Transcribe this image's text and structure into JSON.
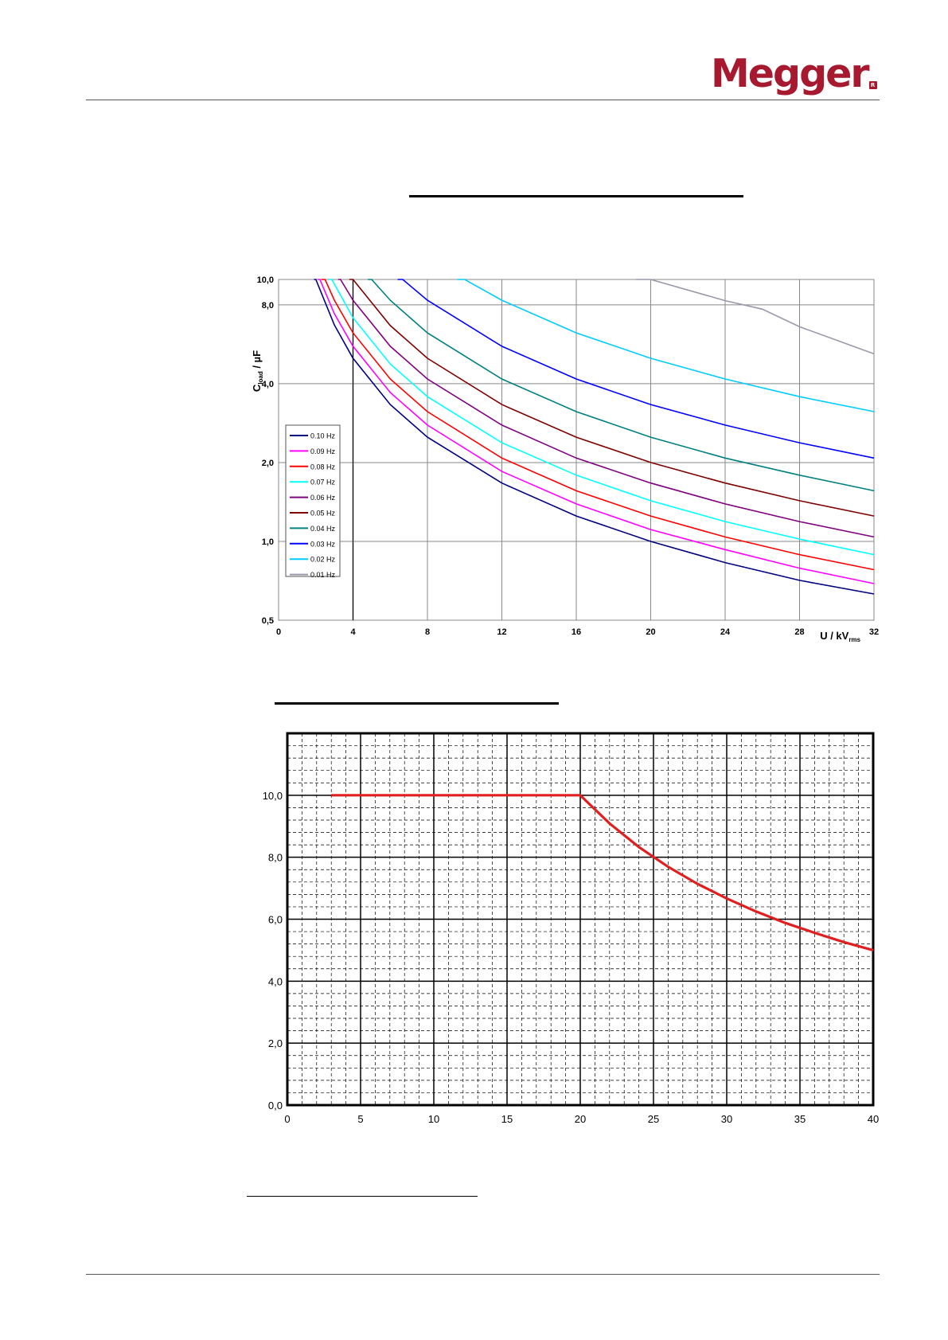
{
  "header": {
    "brand": "Megger",
    "brand_mark": "R"
  },
  "chart_data": [
    {
      "type": "line",
      "title": "",
      "xlabel": "U / kV",
      "xlabel_sub": "rms",
      "ylabel": "C",
      "ylabel_sub": "load",
      "ylabel_unit": " / µF",
      "yscale": "log",
      "xlim": [
        0,
        32
      ],
      "ylim": [
        0.5,
        10
      ],
      "xticks": [
        0,
        4,
        8,
        12,
        16,
        20,
        24,
        28,
        32
      ],
      "xtick_labels": [
        "0",
        "4",
        "8",
        "12",
        "16",
        "20",
        "24",
        "28",
        "32"
      ],
      "yticks": [
        0.5,
        1,
        2,
        4,
        8,
        10
      ],
      "ytick_labels": [
        "0,5",
        "1,0",
        "2,0",
        "4,0",
        "8,0",
        "10,0"
      ],
      "grid": true,
      "legend": "lower-left",
      "series": [
        {
          "name": "0.10 Hz",
          "color": "#000080",
          "x": [
            1.9,
            2,
            3,
            4,
            6,
            8,
            12,
            16,
            20,
            24,
            28,
            32
          ],
          "y": [
            10,
            10,
            6.7,
            5.0,
            3.33,
            2.5,
            1.67,
            1.25,
            1.0,
            0.83,
            0.71,
            0.63
          ]
        },
        {
          "name": "0.09 Hz",
          "color": "#ff00ff",
          "x": [
            2.1,
            2.22,
            3,
            4,
            6,
            8,
            12,
            16,
            20,
            24,
            28,
            32
          ],
          "y": [
            10,
            10,
            7.4,
            5.56,
            3.7,
            2.78,
            1.85,
            1.39,
            1.11,
            0.93,
            0.79,
            0.69
          ]
        },
        {
          "name": "0.08 Hz",
          "color": "#ff0000",
          "x": [
            2.3,
            2.5,
            3,
            4,
            6,
            8,
            12,
            16,
            20,
            24,
            28,
            32
          ],
          "y": [
            10,
            10,
            8.33,
            6.25,
            4.17,
            3.13,
            2.08,
            1.56,
            1.25,
            1.04,
            0.89,
            0.78
          ]
        },
        {
          "name": "0.07 Hz",
          "color": "#00ffff",
          "x": [
            2.7,
            2.86,
            4,
            6,
            8,
            12,
            16,
            20,
            24,
            28,
            32
          ],
          "y": [
            10,
            10,
            7.14,
            4.76,
            3.57,
            2.38,
            1.79,
            1.43,
            1.19,
            1.02,
            0.89
          ]
        },
        {
          "name": "0.06 Hz",
          "color": "#800080",
          "x": [
            3.2,
            3.33,
            4,
            6,
            8,
            12,
            16,
            20,
            24,
            28,
            32
          ],
          "y": [
            10,
            10,
            8.33,
            5.56,
            4.17,
            2.78,
            2.08,
            1.67,
            1.39,
            1.19,
            1.04
          ]
        },
        {
          "name": "0.05 Hz",
          "color": "#800000",
          "x": [
            3.8,
            4.0,
            6,
            8,
            12,
            16,
            20,
            24,
            28,
            32
          ],
          "y": [
            10,
            10,
            6.67,
            5.0,
            3.33,
            2.5,
            2.0,
            1.67,
            1.43,
            1.25
          ]
        },
        {
          "name": "0.04 Hz",
          "color": "#008080",
          "x": [
            4.8,
            5.0,
            6,
            8,
            12,
            16,
            20,
            24,
            28,
            32
          ],
          "y": [
            10,
            10,
            8.33,
            6.25,
            4.17,
            3.13,
            2.5,
            2.08,
            1.79,
            1.56
          ]
        },
        {
          "name": "0.03 Hz",
          "color": "#0000ff",
          "x": [
            6.4,
            6.67,
            8,
            12,
            16,
            20,
            24,
            28,
            32
          ],
          "y": [
            10,
            10,
            8.33,
            5.56,
            4.17,
            3.33,
            2.78,
            2.38,
            2.08
          ]
        },
        {
          "name": "0.02 Hz",
          "color": "#00ccff",
          "x": [
            9.6,
            10,
            12,
            16,
            20,
            24,
            28,
            32
          ],
          "y": [
            10,
            10,
            8.33,
            6.25,
            5.0,
            4.17,
            3.57,
            3.13
          ]
        },
        {
          "name": "0.01 Hz",
          "color": "#9999aa",
          "x": [
            19.2,
            20,
            24,
            26,
            28,
            32
          ],
          "y": [
            10,
            10,
            8.3,
            7.7,
            6.6,
            5.2
          ]
        }
      ]
    },
    {
      "type": "line",
      "title": "",
      "xlabel": "",
      "ylabel": "",
      "xlim": [
        0,
        40
      ],
      "ylim": [
        0,
        12
      ],
      "xticks": [
        0,
        5,
        10,
        15,
        20,
        25,
        30,
        35,
        40
      ],
      "xtick_labels": [
        "0",
        "5",
        "10",
        "15",
        "20",
        "25",
        "30",
        "35",
        "40"
      ],
      "yticks": [
        0,
        2,
        4,
        6,
        8,
        10
      ],
      "ytick_labels": [
        "0,0",
        "2,0",
        "4,0",
        "6,0",
        "8,0",
        "10,0"
      ],
      "grid": true,
      "series": [
        {
          "color": "#e02020",
          "x": [
            3,
            20,
            22,
            24,
            26,
            28,
            30,
            32,
            34,
            36,
            38,
            40
          ],
          "y": [
            10,
            10,
            9.09,
            8.33,
            7.69,
            7.14,
            6.67,
            6.25,
            5.88,
            5.56,
            5.26,
            5.0
          ]
        }
      ]
    }
  ]
}
